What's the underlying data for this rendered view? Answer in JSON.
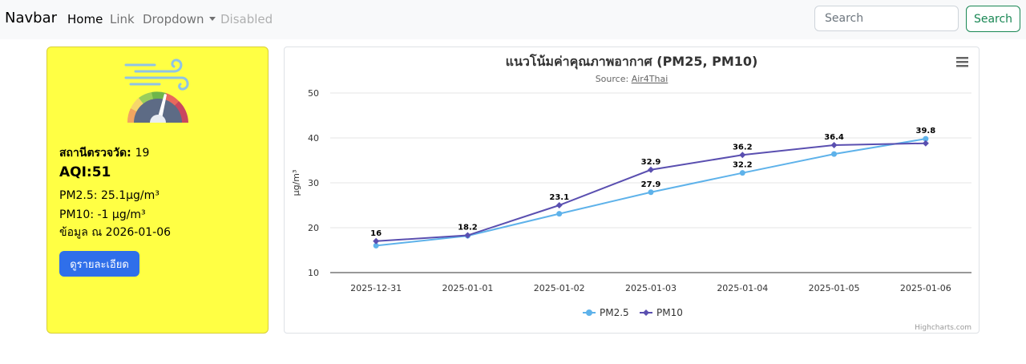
{
  "navbar": {
    "brand": "Navbar",
    "links": {
      "home": "Home",
      "link": "Link",
      "dropdown": "Dropdown",
      "disabled": "Disabled"
    },
    "search_placeholder": "Search",
    "search_button": "Search"
  },
  "aqi_card": {
    "station_label": "สถานีตรวจวัด:",
    "station_value": "19",
    "aqi": "AQI:51",
    "pm25": "PM2.5: 25.1µg/m³",
    "pm10": "PM10: -1 µg/m³",
    "date": "ข้อมูล ณ 2026-01-06",
    "detail_button": "ดูรายละเอียด",
    "gauge_icon": "air-quality-gauge-icon"
  },
  "chart_data": {
    "type": "line",
    "title": "แนวโน้มค่าคุณภาพอากาศ (PM25, PM10)",
    "subtitle_prefix": "Source: ",
    "subtitle_link": "Air4Thai",
    "ylabel": "µg/m³",
    "xlabel": "",
    "categories": [
      "2025-12-31",
      "2025-01-01",
      "2025-01-02",
      "2025-01-03",
      "2025-01-04",
      "2025-01-05",
      "2025-01-06"
    ],
    "ylim": [
      10,
      50
    ],
    "yticks": [
      10,
      20,
      30,
      40,
      50
    ],
    "series": [
      {
        "name": "PM2.5",
        "color": "#5eb2ea",
        "values": [
          16,
          18.2,
          23.1,
          27.9,
          32.2,
          36.4,
          39.8
        ]
      },
      {
        "name": "PM10",
        "color": "#5a4fb0",
        "values": [
          17,
          18.3,
          25,
          32.9,
          36.2,
          38.4,
          38.8
        ]
      }
    ],
    "data_labels": [
      {
        "text": "16"
      },
      {
        "text": "18.2"
      },
      {
        "text": "23.1"
      },
      {
        "text": "32.9"
      },
      {
        "text": "27.9"
      },
      {
        "text": "36.2"
      },
      {
        "text": "32.2"
      },
      {
        "text": "36.4"
      },
      {
        "text": "39.8"
      }
    ],
    "legend_position": "bottom-center",
    "credit": "Highcharts.com",
    "menu_icon": "hamburger-menu-icon"
  },
  "colors": {
    "card_yellow": "#ffff44",
    "primary": "#2f6fea",
    "success": "#198754"
  }
}
